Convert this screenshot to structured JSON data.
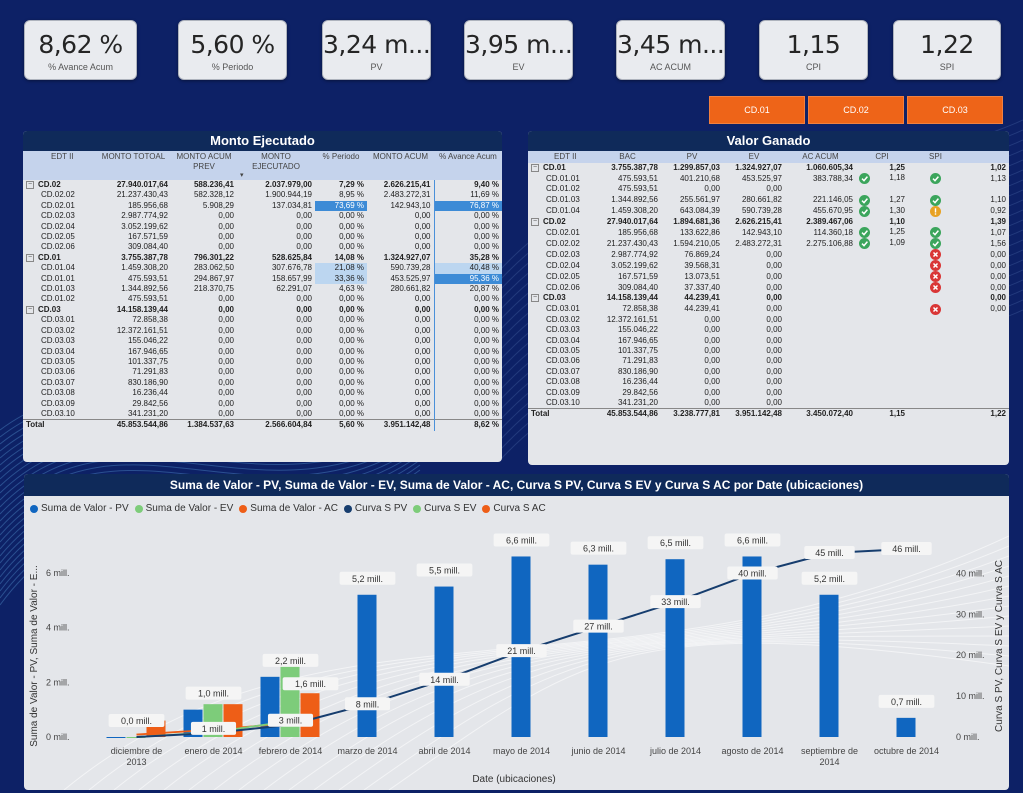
{
  "kpis": [
    {
      "value": "8,62 %",
      "label": "% Avance Acum"
    },
    {
      "value": "5,60 %",
      "label": "% Periodo"
    },
    {
      "value": "3,24 m...",
      "label": "PV"
    },
    {
      "value": "3,95 m...",
      "label": "EV"
    },
    {
      "value": "3,45 m...",
      "label": "AC ACUM"
    },
    {
      "value": "1,15",
      "label": "CPI"
    },
    {
      "value": "1,22",
      "label": "SPI"
    }
  ],
  "cd_buttons": [
    "CD.01",
    "CD.02",
    "CD.03"
  ],
  "monto": {
    "title": "Monto Ejecutado",
    "headers": [
      "EDT II",
      "MONTO TOTOAL",
      "MONTO ACUM PREV",
      "MONTO EJECUTADO",
      "% Periodo",
      "MONTO ACUM",
      "% Avance Acum"
    ],
    "rows": [
      {
        "t": "g",
        "c": [
          "CD.02",
          "27.940.017,64",
          "588.236,41",
          "2.037.979,00",
          "7,29 %",
          "2.626.215,41",
          "9,40 %"
        ]
      },
      {
        "t": "r",
        "c": [
          "CD.02.02",
          "21.237.430,43",
          "582.328,12",
          "1.900.944,19",
          "8,95 %",
          "2.483.272,31",
          "11,69 %"
        ]
      },
      {
        "t": "r",
        "c": [
          "CD.02.01",
          "185.956,68",
          "5.908,29",
          "137.034,81",
          "73,69 %",
          "142.943,10",
          "76,87 %"
        ],
        "hl": [
          4,
          6
        ]
      },
      {
        "t": "r",
        "c": [
          "CD.02.03",
          "2.987.774,92",
          "0,00",
          "0,00",
          "0,00 %",
          "0,00",
          "0,00 %"
        ]
      },
      {
        "t": "r",
        "c": [
          "CD.02.04",
          "3.052.199,62",
          "0,00",
          "0,00",
          "0,00 %",
          "0,00",
          "0,00 %"
        ]
      },
      {
        "t": "r",
        "c": [
          "CD.02.05",
          "167.571,59",
          "0,00",
          "0,00",
          "0,00 %",
          "0,00",
          "0,00 %"
        ]
      },
      {
        "t": "r",
        "c": [
          "CD.02.06",
          "309.084,40",
          "0,00",
          "0,00",
          "0,00 %",
          "0,00",
          "0,00 %"
        ]
      },
      {
        "t": "g",
        "c": [
          "CD.01",
          "3.755.387,78",
          "796.301,22",
          "528.625,84",
          "14,08 %",
          "1.324.927,07",
          "35,28 %"
        ]
      },
      {
        "t": "r",
        "c": [
          "CD.01.04",
          "1.459.308,20",
          "283.062,50",
          "307.676,78",
          "21,08 %",
          "590.739,28",
          "40,48 %"
        ],
        "lb": [
          4,
          6
        ]
      },
      {
        "t": "r",
        "c": [
          "CD.01.01",
          "475.593,51",
          "294.867,97",
          "158.657,99",
          "33,36 %",
          "453.525,97",
          "95,36 %"
        ],
        "lb": [
          4
        ],
        "hl": [
          6
        ]
      },
      {
        "t": "r",
        "c": [
          "CD.01.03",
          "1.344.892,56",
          "218.370,75",
          "62.291,07",
          "4,63 %",
          "280.661,82",
          "20,87 %"
        ]
      },
      {
        "t": "r",
        "c": [
          "CD.01.02",
          "475.593,51",
          "0,00",
          "0,00",
          "0,00 %",
          "0,00",
          "0,00 %"
        ]
      },
      {
        "t": "g",
        "c": [
          "CD.03",
          "14.158.139,44",
          "0,00",
          "0,00",
          "0,00 %",
          "0,00",
          "0,00 %"
        ]
      },
      {
        "t": "r",
        "c": [
          "CD.03.01",
          "72.858,38",
          "0,00",
          "0,00",
          "0,00 %",
          "0,00",
          "0,00 %"
        ]
      },
      {
        "t": "r",
        "c": [
          "CD.03.02",
          "12.372.161,51",
          "0,00",
          "0,00",
          "0,00 %",
          "0,00",
          "0,00 %"
        ]
      },
      {
        "t": "r",
        "c": [
          "CD.03.03",
          "155.046,22",
          "0,00",
          "0,00",
          "0,00 %",
          "0,00",
          "0,00 %"
        ]
      },
      {
        "t": "r",
        "c": [
          "CD.03.04",
          "167.946,65",
          "0,00",
          "0,00",
          "0,00 %",
          "0,00",
          "0,00 %"
        ]
      },
      {
        "t": "r",
        "c": [
          "CD.03.05",
          "101.337,75",
          "0,00",
          "0,00",
          "0,00 %",
          "0,00",
          "0,00 %"
        ]
      },
      {
        "t": "r",
        "c": [
          "CD.03.06",
          "71.291,83",
          "0,00",
          "0,00",
          "0,00 %",
          "0,00",
          "0,00 %"
        ]
      },
      {
        "t": "r",
        "c": [
          "CD.03.07",
          "830.186,90",
          "0,00",
          "0,00",
          "0,00 %",
          "0,00",
          "0,00 %"
        ]
      },
      {
        "t": "r",
        "c": [
          "CD.03.08",
          "16.236,44",
          "0,00",
          "0,00",
          "0,00 %",
          "0,00",
          "0,00 %"
        ]
      },
      {
        "t": "r",
        "c": [
          "CD.03.09",
          "29.842,56",
          "0,00",
          "0,00",
          "0,00 %",
          "0,00",
          "0,00 %"
        ]
      },
      {
        "t": "r",
        "c": [
          "CD.03.10",
          "341.231,20",
          "0,00",
          "0,00",
          "0,00 %",
          "0,00",
          "0,00 %"
        ]
      },
      {
        "t": "tot",
        "c": [
          "Total",
          "45.853.544,86",
          "1.384.537,63",
          "2.566.604,84",
          "5,60 %",
          "3.951.142,48",
          "8,62 %"
        ]
      }
    ]
  },
  "valor": {
    "title": "Valor Ganado",
    "headers": [
      "EDT II",
      "BAC",
      "PV",
      "EV",
      "AC ACUM",
      "CPI",
      "SPI"
    ],
    "rows": [
      {
        "t": "g",
        "c": [
          "CD.01",
          "3.755.387,78",
          "1.299.857,03",
          "1.324.927,07",
          "1.060.605,34",
          "1,25",
          "1,02"
        ]
      },
      {
        "t": "r",
        "c": [
          "CD.01.01",
          "475.593,51",
          "401.210,68",
          "453.525,97",
          "383.788,34",
          "1,18",
          "1,13"
        ],
        "ci": "ok",
        "si": "ok"
      },
      {
        "t": "r",
        "c": [
          "CD.01.02",
          "475.593,51",
          "0,00",
          "0,00",
          "",
          "",
          ""
        ]
      },
      {
        "t": "r",
        "c": [
          "CD.01.03",
          "1.344.892,56",
          "255.561,97",
          "280.661,82",
          "221.146,05",
          "1,27",
          "1,10"
        ],
        "ci": "ok",
        "si": "ok"
      },
      {
        "t": "r",
        "c": [
          "CD.01.04",
          "1.459.308,20",
          "643.084,39",
          "590.739,28",
          "455.670,95",
          "1,30",
          "0,92"
        ],
        "ci": "ok",
        "si": "warn"
      },
      {
        "t": "g",
        "c": [
          "CD.02",
          "27.940.017,64",
          "1.894.681,36",
          "2.626.215,41",
          "2.389.467,06",
          "1,10",
          "1,39"
        ]
      },
      {
        "t": "r",
        "c": [
          "CD.02.01",
          "185.956,68",
          "133.622,86",
          "142.943,10",
          "114.360,18",
          "1,25",
          "1,07"
        ],
        "ci": "ok",
        "si": "ok"
      },
      {
        "t": "r",
        "c": [
          "CD.02.02",
          "21.237.430,43",
          "1.594.210,05",
          "2.483.272,31",
          "2.275.106,88",
          "1,09",
          "1,56"
        ],
        "ci": "ok",
        "si": "ok"
      },
      {
        "t": "r",
        "c": [
          "CD.02.03",
          "2.987.774,92",
          "76.869,24",
          "0,00",
          "",
          "",
          "0,00"
        ],
        "si": "bad"
      },
      {
        "t": "r",
        "c": [
          "CD.02.04",
          "3.052.199,62",
          "39.568,31",
          "0,00",
          "",
          "",
          "0,00"
        ],
        "si": "bad"
      },
      {
        "t": "r",
        "c": [
          "CD.02.05",
          "167.571,59",
          "13.073,51",
          "0,00",
          "",
          "",
          "0,00"
        ],
        "si": "bad"
      },
      {
        "t": "r",
        "c": [
          "CD.02.06",
          "309.084,40",
          "37.337,40",
          "0,00",
          "",
          "",
          "0,00"
        ],
        "si": "bad"
      },
      {
        "t": "g",
        "c": [
          "CD.03",
          "14.158.139,44",
          "44.239,41",
          "0,00",
          "",
          "",
          "0,00"
        ]
      },
      {
        "t": "r",
        "c": [
          "CD.03.01",
          "72.858,38",
          "44.239,41",
          "0,00",
          "",
          "",
          "0,00"
        ],
        "si": "bad"
      },
      {
        "t": "r",
        "c": [
          "CD.03.02",
          "12.372.161,51",
          "0,00",
          "0,00",
          "",
          "",
          ""
        ]
      },
      {
        "t": "r",
        "c": [
          "CD.03.03",
          "155.046,22",
          "0,00",
          "0,00",
          "",
          "",
          ""
        ]
      },
      {
        "t": "r",
        "c": [
          "CD.03.04",
          "167.946,65",
          "0,00",
          "0,00",
          "",
          "",
          ""
        ]
      },
      {
        "t": "r",
        "c": [
          "CD.03.05",
          "101.337,75",
          "0,00",
          "0,00",
          "",
          "",
          ""
        ]
      },
      {
        "t": "r",
        "c": [
          "CD.03.06",
          "71.291,83",
          "0,00",
          "0,00",
          "",
          "",
          ""
        ]
      },
      {
        "t": "r",
        "c": [
          "CD.03.07",
          "830.186,90",
          "0,00",
          "0,00",
          "",
          "",
          ""
        ]
      },
      {
        "t": "r",
        "c": [
          "CD.03.08",
          "16.236,44",
          "0,00",
          "0,00",
          "",
          "",
          ""
        ]
      },
      {
        "t": "r",
        "c": [
          "CD.03.09",
          "29.842,56",
          "0,00",
          "0,00",
          "",
          "",
          ""
        ]
      },
      {
        "t": "r",
        "c": [
          "CD.03.10",
          "341.231,20",
          "0,00",
          "0,00",
          "",
          "",
          ""
        ]
      },
      {
        "t": "tot",
        "c": [
          "Total",
          "45.853.544,86",
          "3.238.777,81",
          "3.951.142,48",
          "3.450.072,40",
          "1,15",
          "1,22"
        ]
      }
    ]
  },
  "chart_data": {
    "type": "bar",
    "title": "Suma de Valor - PV, Suma de Valor - EV, Suma de Valor - AC, Curva S PV, Curva S EV y Curva S AC por Date (ubicaciones)",
    "xlabel": "Date (ubicaciones)",
    "ylabel": "Suma de Valor - PV, Suma de Valor - E...",
    "y2label": "Curva S PV, Curva S EV y Curva S AC",
    "legend_position": "top-left",
    "categories": [
      "diciembre de 2013",
      "enero de 2014",
      "febrero de 2014",
      "marzo de 2014",
      "abril de 2014",
      "mayo de 2014",
      "junio de 2014",
      "julio de 2014",
      "agosto de 2014",
      "septiembre de 2014",
      "octubre de 2014"
    ],
    "yticks": [
      "0 mill.",
      "2 mill.",
      "4 mill.",
      "6 mill."
    ],
    "y2ticks": [
      "0 mill.",
      "10 mill.",
      "20 mill.",
      "30 mill.",
      "40 mill."
    ],
    "ylim": [
      0,
      6.8
    ],
    "y2lim": [
      0,
      45.5
    ],
    "colors": {
      "pv": "#1066c0",
      "ev": "#7dcc7a",
      "ac": "#ee5e17",
      "spv": "#163d6e",
      "sev": "#7dcc7a",
      "sac": "#ee5e17"
    },
    "legend": [
      "Suma de Valor - PV",
      "Suma de Valor - EV",
      "Suma de Valor - AC",
      "Curva S PV",
      "Curva S EV",
      "Curva S AC"
    ],
    "series": [
      {
        "name": "Suma de Valor - PV",
        "key": "pv",
        "axis": "y",
        "values": [
          0.0,
          1.0,
          2.2,
          5.2,
          5.5,
          6.6,
          6.3,
          6.5,
          6.6,
          5.2,
          0.7
        ]
      },
      {
        "name": "Suma de Valor - EV",
        "key": "ev",
        "axis": "y",
        "values": [
          0.0,
          1.2,
          2.6,
          null,
          null,
          null,
          null,
          null,
          null,
          null,
          null
        ]
      },
      {
        "name": "Suma de Valor - AC",
        "key": "ac",
        "axis": "y",
        "values": [
          0.6,
          1.2,
          1.6,
          null,
          null,
          null,
          null,
          null,
          null,
          null,
          null
        ]
      },
      {
        "name": "Curva S PV",
        "key": "spv",
        "axis": "y2",
        "values": [
          0,
          1,
          3,
          8,
          14,
          21,
          27,
          33,
          40,
          45,
          46
        ]
      },
      {
        "name": "Curva S EV",
        "key": "sev",
        "axis": "y2",
        "values": [
          0,
          1.2,
          3.9,
          null,
          null,
          null,
          null,
          null,
          null,
          null,
          null
        ]
      },
      {
        "name": "Curva S AC",
        "key": "sac",
        "axis": "y2",
        "values": [
          0.6,
          1.8,
          3.4,
          null,
          null,
          null,
          null,
          null,
          null,
          null,
          null
        ]
      }
    ],
    "bar_labels": [
      "0,0 mill.",
      "1,0 mill.",
      "2,2 mill.",
      "5,2 mill.",
      "5,5 mill.",
      "6,6 mill.",
      "6,3 mill.",
      "6,5 mill.",
      "6,6 mill.",
      "5,2 mill.",
      "0,7 mill."
    ],
    "ac_labels": [
      "",
      "",
      "1,6 mill.",
      "",
      "",
      "",
      "",
      "",
      "",
      "",
      ""
    ],
    "curve_labels": [
      "",
      "1 mill.",
      "3 mill.",
      "8 mill.",
      "14 mill.",
      "21 mill.",
      "27 mill.",
      "33 mill.",
      "40 mill.",
      "45 mill.",
      "46 mill."
    ]
  }
}
